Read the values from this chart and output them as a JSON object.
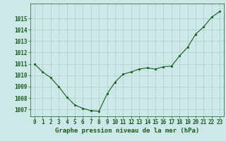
{
  "x": [
    0,
    1,
    2,
    3,
    4,
    5,
    6,
    7,
    8,
    9,
    10,
    11,
    12,
    13,
    14,
    15,
    16,
    17,
    18,
    19,
    20,
    21,
    22,
    23
  ],
  "y": [
    1011.0,
    1010.3,
    1009.8,
    1009.0,
    1008.1,
    1007.4,
    1007.1,
    1006.9,
    1006.85,
    1008.35,
    1009.4,
    1010.1,
    1010.3,
    1010.55,
    1010.65,
    1010.55,
    1010.75,
    1010.8,
    1011.7,
    1012.45,
    1013.6,
    1014.25,
    1015.1,
    1015.6
  ],
  "line_color": "#1a5c1a",
  "marker_color": "#1a5c1a",
  "bg_color": "#cce8e8",
  "grid_color": "#aacccc",
  "xlabel": "Graphe pression niveau de la mer (hPa)",
  "xlabel_fontsize": 6.5,
  "ylabel_ticks": [
    1007,
    1008,
    1009,
    1010,
    1011,
    1012,
    1013,
    1014,
    1015
  ],
  "ylim": [
    1006.4,
    1016.3
  ],
  "xlim": [
    -0.5,
    23.5
  ],
  "tick_fontsize": 5.5,
  "tick_color": "#1a5c1a",
  "label_color": "#1a5c1a"
}
